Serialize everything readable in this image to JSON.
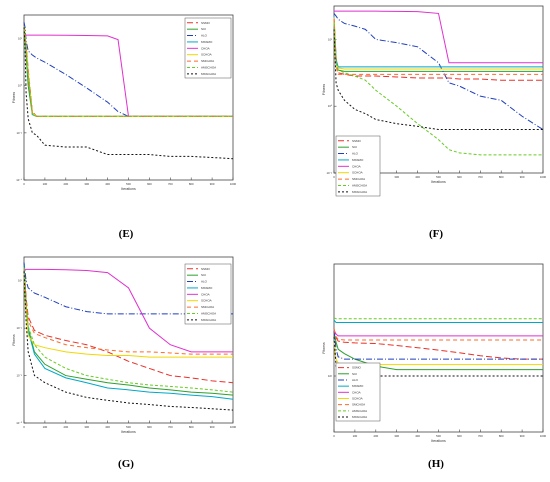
{
  "figure": {
    "panel_labels": [
      "(E)",
      "(F)",
      "(G)",
      "(H)"
    ]
  },
  "chart_data": [
    {
      "id": "E",
      "type": "line",
      "xlabel": "Iterations",
      "ylabel": "Fitness",
      "yscale": "log",
      "xlim": [
        0,
        1000
      ],
      "ylim": [
        0.0001,
        1000
      ],
      "xticks": [
        0,
        100,
        200,
        300,
        400,
        500,
        600,
        700,
        800,
        900,
        1000
      ],
      "yticks": [
        0.0001,
        0.01,
        1,
        100
      ],
      "ytick_labels": [
        "10⁻⁴",
        "10⁻²",
        "10⁰",
        "10²"
      ],
      "legend_position": "top-right",
      "x": [
        0,
        5,
        10,
        20,
        40,
        60,
        100,
        200,
        300,
        400,
        450,
        500,
        600,
        700,
        800,
        900,
        1000
      ],
      "series": [
        {
          "name": "SSMO",
          "color": "#e8312a",
          "dash": "6,3",
          "values": [
            400,
            200,
            60,
            5,
            0.08,
            0.05,
            0.05,
            0.05,
            0.05,
            0.05,
            0.05,
            0.05,
            0.05,
            0.05,
            0.05,
            0.05,
            0.05
          ]
        },
        {
          "name": "SCI",
          "color": "#2ca02c",
          "dash": "",
          "values": [
            300,
            100,
            20,
            1,
            0.06,
            0.05,
            0.05,
            0.05,
            0.05,
            0.05,
            0.05,
            0.05,
            0.05,
            0.05,
            0.05,
            0.05,
            0.05
          ]
        },
        {
          "name": "ALO",
          "color": "#1f3fbf",
          "dash": "6,2,1,2",
          "values": [
            500,
            300,
            80,
            30,
            20,
            15,
            10,
            3,
            0.8,
            0.2,
            0.08,
            0.05,
            0.05,
            0.05,
            0.05,
            0.05,
            0.05
          ]
        },
        {
          "name": "MSSMO",
          "color": "#00a8c8",
          "dash": "",
          "values": [
            350,
            150,
            40,
            3,
            0.06,
            0.05,
            0.05,
            0.05,
            0.05,
            0.05,
            0.05,
            0.05,
            0.05,
            0.05,
            0.05,
            0.05,
            0.05
          ]
        },
        {
          "name": "CHOA",
          "color": "#e030d0",
          "dash": "",
          "values": [
            140,
            140,
            140,
            140,
            140,
            140,
            140,
            138,
            135,
            130,
            90,
            0.05,
            0.05,
            0.05,
            0.05,
            0.05,
            0.05
          ]
        },
        {
          "name": "SCHOA",
          "color": "#f2d600",
          "dash": "",
          "values": [
            330,
            160,
            50,
            4,
            0.07,
            0.05,
            0.05,
            0.05,
            0.05,
            0.05,
            0.05,
            0.05,
            0.05,
            0.05,
            0.05,
            0.05,
            0.05
          ]
        },
        {
          "name": "SMCHOA",
          "color": "#ff6a2a",
          "dash": "4,3",
          "values": [
            320,
            140,
            45,
            3,
            0.07,
            0.05,
            0.05,
            0.05,
            0.05,
            0.05,
            0.05,
            0.05,
            0.05,
            0.05,
            0.05,
            0.05,
            0.05
          ]
        },
        {
          "name": "AMSCHOA",
          "color": "#66cc22",
          "dash": "3,2",
          "values": [
            310,
            130,
            40,
            3,
            0.06,
            0.05,
            0.05,
            0.05,
            0.05,
            0.05,
            0.05,
            0.05,
            0.05,
            0.05,
            0.05,
            0.05,
            0.05
          ]
        },
        {
          "name": "MSSCHOA",
          "color": "#111111",
          "dash": "2,2",
          "values": [
            300,
            50,
            0.5,
            0.04,
            0.01,
            0.008,
            0.003,
            0.0025,
            0.0025,
            0.0012,
            0.0012,
            0.0012,
            0.0012,
            0.001,
            0.001,
            0.0009,
            0.0008
          ]
        }
      ]
    },
    {
      "id": "F",
      "type": "line",
      "xlabel": "Iterations",
      "ylabel": "Fitness",
      "yscale": "log",
      "xlim": [
        0,
        1000
      ],
      "ylim": [
        0.01,
        1000
      ],
      "xticks": [
        0,
        100,
        200,
        300,
        400,
        500,
        600,
        700,
        800,
        900,
        1000
      ],
      "yticks": [
        0.01,
        1,
        100
      ],
      "ytick_labels": [
        "10⁻²",
        "10⁰",
        "10²"
      ],
      "legend_position": "bottom-left",
      "x": [
        0,
        10,
        20,
        50,
        100,
        150,
        200,
        300,
        400,
        500,
        550,
        600,
        700,
        800,
        900,
        1000
      ],
      "series": [
        {
          "name": "SSMO",
          "color": "#e8312a",
          "dash": "6,3",
          "values": [
            400,
            30,
            10,
            9,
            8,
            8,
            8,
            7.5,
            7,
            7,
            7,
            6.5,
            6.5,
            6,
            6,
            6
          ]
        },
        {
          "name": "SCI",
          "color": "#2ca02c",
          "dash": "",
          "values": [
            350,
            20,
            12,
            11,
            11,
            11,
            11,
            11,
            11,
            11,
            11,
            11,
            11,
            11,
            11,
            11
          ]
        },
        {
          "name": "ALO",
          "color": "#1f3fbf",
          "dash": "6,2,1,2",
          "values": [
            600,
            500,
            400,
            300,
            250,
            200,
            100,
            80,
            60,
            20,
            5,
            4,
            2,
            1.5,
            0.5,
            0.2
          ]
        },
        {
          "name": "MSSMO",
          "color": "#00a8c8",
          "dash": "",
          "values": [
            500,
            25,
            15,
            15,
            15,
            15,
            15,
            15,
            15,
            15,
            15,
            15,
            15,
            15,
            15,
            15
          ]
        },
        {
          "name": "CHOA",
          "color": "#e030d0",
          "dash": "",
          "values": [
            700,
            700,
            700,
            700,
            700,
            700,
            700,
            690,
            680,
            600,
            20,
            20,
            20,
            20,
            20,
            20
          ]
        },
        {
          "name": "SCHOA",
          "color": "#f2d600",
          "dash": "",
          "values": [
            450,
            18,
            14,
            13,
            13,
            13,
            13,
            13,
            13,
            13,
            13,
            13,
            13,
            13,
            13,
            13
          ]
        },
        {
          "name": "SMCHOA",
          "color": "#ff6a2a",
          "dash": "4,3",
          "values": [
            420,
            16,
            9,
            9,
            9,
            9,
            9,
            9,
            9,
            9,
            9,
            9,
            9,
            9,
            9,
            9
          ]
        },
        {
          "name": "AMSCHOA",
          "color": "#66cc22",
          "dash": "3,2",
          "values": [
            300,
            20,
            12,
            10,
            8,
            6,
            3,
            1,
            0.3,
            0.1,
            0.05,
            0.04,
            0.035,
            0.035,
            0.035,
            0.035
          ]
        },
        {
          "name": "MSSCHOA",
          "color": "#111111",
          "dash": "2,2",
          "values": [
            200,
            5,
            3,
            1.5,
            0.8,
            0.6,
            0.4,
            0.3,
            0.25,
            0.2,
            0.2,
            0.2,
            0.2,
            0.2,
            0.2,
            0.2
          ]
        }
      ]
    },
    {
      "id": "G",
      "type": "line",
      "xlabel": "Iterations",
      "ylabel": "Fitness",
      "yscale": "log",
      "xlim": [
        0,
        1000
      ],
      "ylim": [
        1e-05,
        100
      ],
      "xticks": [
        0,
        100,
        200,
        300,
        400,
        500,
        600,
        700,
        800,
        900,
        1000
      ],
      "yticks": [
        1e-05,
        0.001,
        0.1,
        10
      ],
      "ytick_labels": [
        "10⁻⁵",
        "10⁻³",
        "10⁻¹",
        "10¹"
      ],
      "legend_position": "top-right",
      "x": [
        0,
        10,
        20,
        50,
        100,
        200,
        300,
        400,
        500,
        600,
        700,
        800,
        900,
        1000
      ],
      "series": [
        {
          "name": "SSMO",
          "color": "#e8312a",
          "dash": "6,3",
          "values": [
            50,
            2,
            0.3,
            0.08,
            0.05,
            0.03,
            0.02,
            0.01,
            0.004,
            0.002,
            0.001,
            0.0008,
            0.0006,
            0.0005
          ]
        },
        {
          "name": "SCI",
          "color": "#2ca02c",
          "dash": "",
          "values": [
            40,
            1,
            0.1,
            0.01,
            0.003,
            0.001,
            0.0007,
            0.0005,
            0.0004,
            0.0003,
            0.00025,
            0.0002,
            0.00018,
            0.00015
          ]
        },
        {
          "name": "ALO",
          "color": "#1f3fbf",
          "dash": "6,2,1,2",
          "values": [
            60,
            10,
            5,
            3,
            2,
            0.8,
            0.5,
            0.4,
            0.4,
            0.4,
            0.4,
            0.4,
            0.4,
            0.4
          ]
        },
        {
          "name": "MSSMO",
          "color": "#00a8c8",
          "dash": "",
          "values": [
            45,
            0.8,
            0.08,
            0.008,
            0.002,
            0.0008,
            0.0005,
            0.0003,
            0.00025,
            0.0002,
            0.00018,
            0.00015,
            0.00013,
            0.0001
          ]
        },
        {
          "name": "CHOA",
          "color": "#e030d0",
          "dash": "",
          "values": [
            30,
            30,
            30,
            30,
            30,
            29,
            27,
            22,
            5,
            0.1,
            0.02,
            0.01,
            0.01,
            0.01
          ]
        },
        {
          "name": "SCHOA",
          "color": "#f2d600",
          "dash": "",
          "values": [
            20,
            0.5,
            0.05,
            0.02,
            0.015,
            0.01,
            0.008,
            0.007,
            0.007,
            0.006,
            0.006,
            0.006,
            0.006,
            0.006
          ]
        },
        {
          "name": "SMCHOA",
          "color": "#ff6a2a",
          "dash": "4,3",
          "values": [
            35,
            1.5,
            0.2,
            0.06,
            0.04,
            0.02,
            0.015,
            0.012,
            0.01,
            0.01,
            0.009,
            0.008,
            0.008,
            0.008
          ]
        },
        {
          "name": "AMSCHOA",
          "color": "#66cc22",
          "dash": "3,2",
          "values": [
            38,
            1.2,
            0.12,
            0.02,
            0.006,
            0.002,
            0.001,
            0.0007,
            0.0005,
            0.0004,
            0.00035,
            0.0003,
            0.00025,
            0.0002
          ]
        },
        {
          "name": "MSSCHOA",
          "color": "#111111",
          "dash": "2,2",
          "values": [
            25,
            0.2,
            0.01,
            0.001,
            0.0005,
            0.0002,
            0.00012,
            9e-05,
            7e-05,
            6e-05,
            5e-05,
            4.5e-05,
            4e-05,
            3.5e-05
          ]
        }
      ]
    },
    {
      "id": "H",
      "type": "line",
      "xlabel": "Iterations",
      "ylabel": "Fitness",
      "yscale": "log",
      "xlim": [
        0,
        1000
      ],
      "ylim": [
        10,
        10000
      ],
      "xticks": [
        0,
        100,
        200,
        300,
        400,
        500,
        600,
        700,
        800,
        900,
        1000
      ],
      "yticks": [
        100
      ],
      "ytick_labels": [
        "10²"
      ],
      "legend_position": "bottom-left",
      "x": [
        0,
        10,
        20,
        50,
        100,
        200,
        300,
        400,
        500,
        600,
        700,
        800,
        900,
        1000
      ],
      "series": [
        {
          "name": "SSMO",
          "color": "#e8312a",
          "dash": "6,3",
          "values": [
            700,
            480,
            420,
            400,
            390,
            380,
            350,
            320,
            290,
            260,
            230,
            210,
            200,
            200
          ]
        },
        {
          "name": "SCI",
          "color": "#2ca02c",
          "dash": "",
          "values": [
            600,
            400,
            300,
            250,
            200,
            150,
            130,
            130,
            130,
            130,
            130,
            130,
            130,
            130
          ]
        },
        {
          "name": "ALO",
          "color": "#1f3fbf",
          "dash": "6,2,1,2",
          "values": [
            650,
            300,
            220,
            200,
            200,
            200,
            200,
            200,
            200,
            200,
            200,
            200,
            200,
            200
          ]
        },
        {
          "name": "MSSMO",
          "color": "#00a8c8",
          "dash": "",
          "values": [
            1000,
            900,
            900,
            900,
            900,
            900,
            900,
            900,
            900,
            900,
            900,
            900,
            900,
            900
          ]
        },
        {
          "name": "CHOA",
          "color": "#e030d0",
          "dash": "",
          "values": [
            660,
            560,
            520,
            520,
            520,
            520,
            520,
            520,
            520,
            520,
            520,
            520,
            520,
            520
          ]
        },
        {
          "name": "SCHOA",
          "color": "#f2d600",
          "dash": "",
          "values": [
            400,
            200,
            170,
            160,
            160,
            160,
            160,
            160,
            160,
            160,
            160,
            160,
            160,
            160
          ]
        },
        {
          "name": "SMCHOA",
          "color": "#ff6a2a",
          "dash": "4,3",
          "values": [
            680,
            500,
            450,
            440,
            440,
            440,
            440,
            440,
            440,
            440,
            440,
            440,
            440,
            440
          ]
        },
        {
          "name": "AMSCHOA",
          "color": "#66cc22",
          "dash": "3,2",
          "values": [
            1100,
            1050,
            1050,
            1050,
            1050,
            1050,
            1050,
            1050,
            1050,
            1050,
            1050,
            1050,
            1050,
            1050
          ]
        },
        {
          "name": "MSSCHOA",
          "color": "#111111",
          "dash": "2,2",
          "values": [
            500,
            150,
            110,
            100,
            100,
            100,
            100,
            100,
            100,
            100,
            100,
            100,
            100,
            100
          ]
        }
      ]
    }
  ]
}
